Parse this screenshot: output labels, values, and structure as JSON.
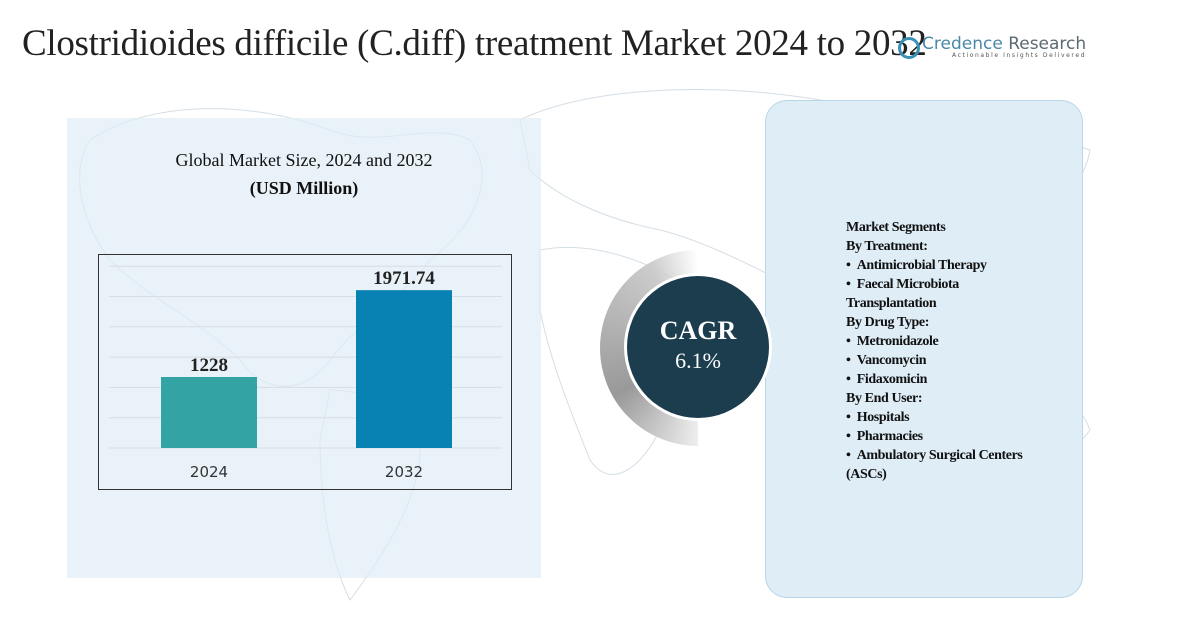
{
  "title": "Clostridioides difficile (C.diff) treatment Market 2024 to 2032",
  "logo": {
    "name_a": "Credence",
    "name_b": "Research",
    "tagline": "Actionable Insights Delivered"
  },
  "chart_title_line1": "Global Market Size, 2024 and 2032",
  "chart_title_line2": "(USD Million)",
  "chart_data": {
    "type": "bar",
    "title": "Global Market Size, 2024 and 2032 (USD Million)",
    "categories": [
      "2024",
      "2032"
    ],
    "values": [
      1228,
      1971.74
    ],
    "data_labels": [
      "1228",
      "1971.74"
    ],
    "colors": [
      "#34a3a3",
      "#0882b3"
    ],
    "ylim": [
      620,
      2170
    ],
    "grid": true,
    "xlabel": "",
    "ylabel": ""
  },
  "cagr": {
    "label": "CAGR",
    "value": "6.1%"
  },
  "segments": {
    "heading": "Market Segments",
    "groups": [
      {
        "title": "By Treatment:",
        "items": [
          "Antimicrobial Therapy",
          "Faecal Microbiota Transplantation"
        ]
      },
      {
        "title": "By Drug Type:",
        "items": [
          "Metronidazole",
          "Vancomycin",
          "Fidaxomicin"
        ]
      },
      {
        "title": "By End User:",
        "items": [
          "Hospitals",
          "Pharmacies",
          "Ambulatory Surgical Centers (ASCs)"
        ]
      }
    ]
  }
}
